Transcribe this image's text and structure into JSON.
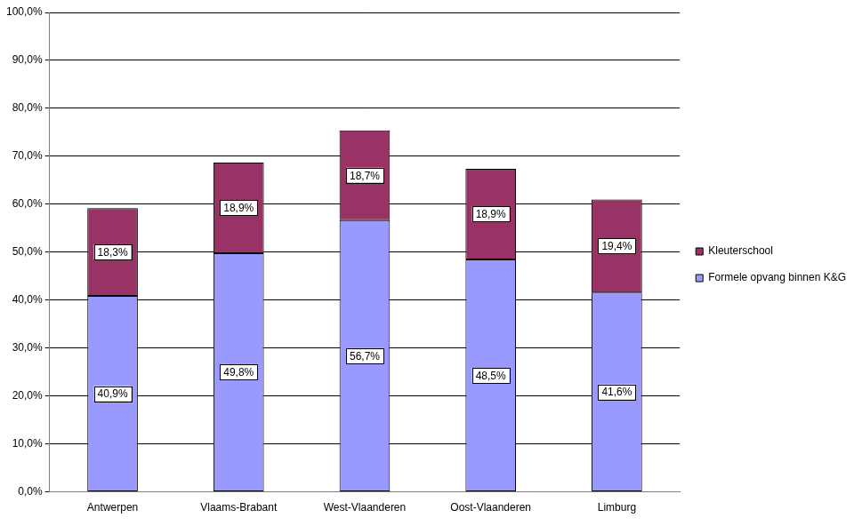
{
  "chart_data": {
    "type": "bar",
    "stacked": true,
    "data_labels": true,
    "grid": true,
    "legend": "right",
    "categories": [
      "Antwerpen",
      "Vlaams-Brabant",
      "West-Vlaanderen",
      "Oost-Vlaanderen",
      "Limburg"
    ],
    "series": [
      {
        "name": "Formele opvang binnen K&G",
        "color": "#9999ff",
        "values": [
          40.9,
          49.8,
          56.7,
          48.5,
          41.6
        ],
        "value_labels": [
          "40,9%",
          "49,8%",
          "56,7%",
          "48,5%",
          "41,6%"
        ]
      },
      {
        "name": "Kleuterschool",
        "color": "#993366",
        "values": [
          18.3,
          18.9,
          18.7,
          18.9,
          19.4
        ],
        "value_labels": [
          "18,3%",
          "18,9%",
          "18,7%",
          "18,9%",
          "19,4%"
        ]
      }
    ],
    "ylim": [
      0,
      100
    ],
    "yticks": [
      {
        "value": 0,
        "label": "0,0%"
      },
      {
        "value": 10,
        "label": "10,0%"
      },
      {
        "value": 20,
        "label": "20,0%"
      },
      {
        "value": 30,
        "label": "30,0%"
      },
      {
        "value": 40,
        "label": "40,0%"
      },
      {
        "value": 50,
        "label": "50,0%"
      },
      {
        "value": 60,
        "label": "60,0%"
      },
      {
        "value": 70,
        "label": "70,0%"
      },
      {
        "value": 80,
        "label": "80,0%"
      },
      {
        "value": 90,
        "label": "90,0%"
      },
      {
        "value": 100,
        "label": "100,0%"
      }
    ]
  }
}
